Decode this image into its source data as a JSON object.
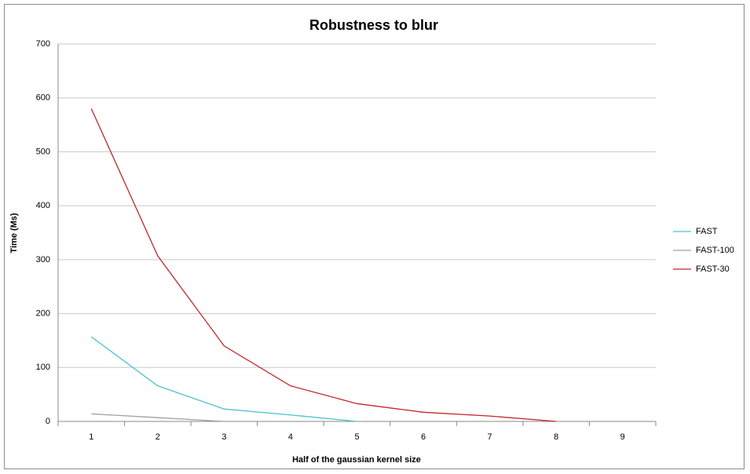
{
  "chart_data": {
    "type": "line",
    "title": "Robustness to blur",
    "x_label": "Half of the gaussian kernel size",
    "y_label": "Time (Ms)",
    "categories": [
      "1",
      "2",
      "3",
      "4",
      "5",
      "6",
      "7",
      "8",
      "9"
    ],
    "series": [
      {
        "name": "FAST",
        "color": "#4bc4d0",
        "values": [
          157,
          66,
          23,
          12,
          0,
          null,
          null,
          null,
          null
        ]
      },
      {
        "name": "FAST-100",
        "color": "#a0a0a0",
        "values": [
          14,
          7,
          0,
          null,
          null,
          null,
          null,
          null,
          null
        ]
      },
      {
        "name": "FAST-30",
        "color": "#c0282a",
        "values": [
          580,
          307,
          140,
          66,
          33,
          17,
          10,
          0,
          null
        ]
      }
    ],
    "ylim": [
      0,
      700
    ],
    "yticks": [
      0,
      100,
      200,
      300,
      400,
      500,
      600,
      700
    ],
    "grid": true,
    "legend": "right"
  }
}
